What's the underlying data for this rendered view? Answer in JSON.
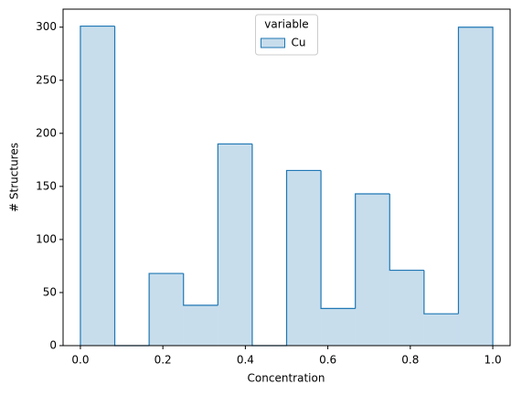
{
  "chart_data": {
    "type": "histogram",
    "xlabel": "Concentration",
    "ylabel": "# Structures",
    "bins": [
      0,
      0.08333,
      0.16667,
      0.25,
      0.33333,
      0.41667,
      0.5,
      0.58333,
      0.66667,
      0.75,
      0.83333,
      0.91667,
      1
    ],
    "series": [
      {
        "name": "Cu",
        "color": "#1f77b4",
        "values": [
          301,
          0,
          68,
          38,
          190,
          0,
          165,
          35,
          143,
          71,
          30,
          300
        ]
      }
    ],
    "legend_title": "variable",
    "legend": "upper center",
    "xlim": [
      -0.042,
      1.042
    ],
    "xticks": [
      {
        "value": 0,
        "label": "0.0"
      },
      {
        "value": 0.2,
        "label": "0.2"
      },
      {
        "value": 0.4,
        "label": "0.4"
      },
      {
        "value": 0.6,
        "label": "0.6"
      },
      {
        "value": 0.8,
        "label": "0.8"
      },
      {
        "value": 1,
        "label": "1.0"
      }
    ],
    "ylim": [
      0,
      317
    ],
    "yticks": [
      0,
      50,
      100,
      150,
      200,
      250,
      300
    ]
  }
}
